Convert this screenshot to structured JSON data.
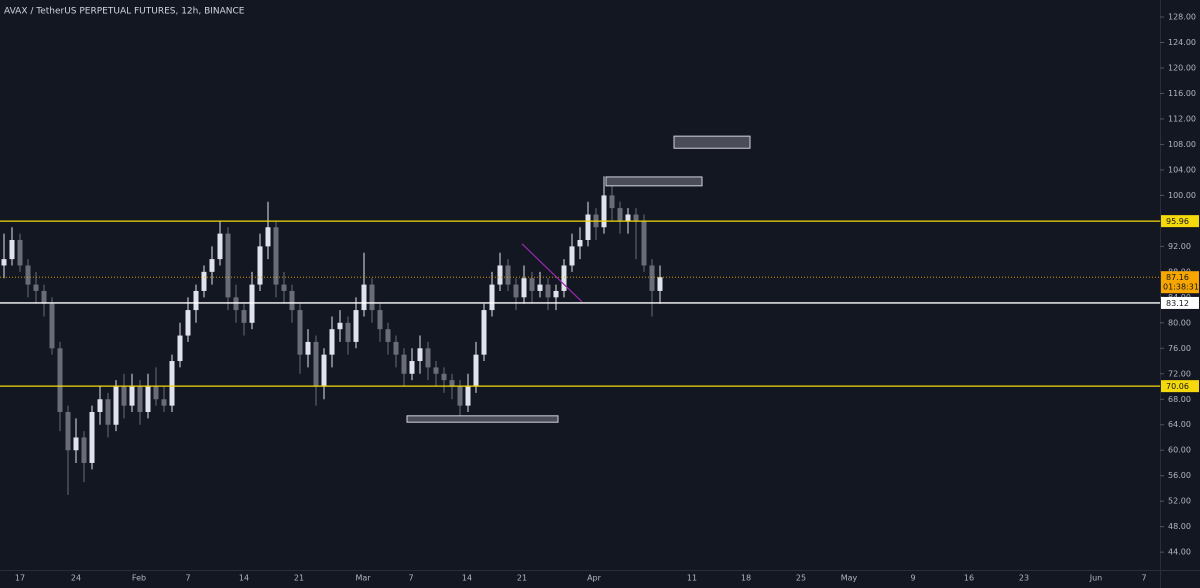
{
  "chart_data": {
    "type": "candlestick",
    "title": "AVAX / TetherUS PERPETUAL FUTURES, 12h, BINANCE",
    "up_color": "#e0e3eb",
    "down_color": "#6a6d78",
    "ylim": [
      41.2,
      130.67
    ],
    "yticks": [
      {
        "value": 44,
        "label": "44.00"
      },
      {
        "value": 48,
        "label": "48.00"
      },
      {
        "value": 52,
        "label": "52.00"
      },
      {
        "value": 56,
        "label": "56.00"
      },
      {
        "value": 60,
        "label": "60.00"
      },
      {
        "value": 64,
        "label": "64.00"
      },
      {
        "value": 68,
        "label": "68.00"
      },
      {
        "value": 72,
        "label": "72.00"
      },
      {
        "value": 76,
        "label": "76.00"
      },
      {
        "value": 80,
        "label": "80.00"
      },
      {
        "value": 84,
        "label": "84.00"
      },
      {
        "value": 88,
        "label": "88.00"
      },
      {
        "value": 92,
        "label": "92.00"
      },
      {
        "value": 96,
        "label": "96.00"
      },
      {
        "value": 100,
        "label": "100.00"
      },
      {
        "value": 104,
        "label": "104.00"
      },
      {
        "value": 108,
        "label": "108.00"
      },
      {
        "value": 112,
        "label": "112.00"
      },
      {
        "value": 116,
        "label": "116.00"
      },
      {
        "value": 120,
        "label": "120.00"
      },
      {
        "value": 124,
        "label": "124.00"
      },
      {
        "value": 128,
        "label": "128.00"
      }
    ],
    "xticks": [
      "17",
      "24",
      "Feb",
      "7",
      "14",
      "21",
      "Mar",
      "7",
      "14",
      "21",
      "Apr",
      "11",
      "18",
      "25",
      "May",
      "9",
      "16",
      "23",
      "Jun",
      "7"
    ],
    "candles": [
      [
        89,
        94,
        87,
        90
      ],
      [
        90,
        95,
        89,
        93
      ],
      [
        93,
        94,
        88,
        89
      ],
      [
        89,
        90,
        84,
        86
      ],
      [
        86,
        88,
        83,
        85
      ],
      [
        85,
        86,
        81,
        83
      ],
      [
        83,
        84,
        75,
        76
      ],
      [
        76,
        77,
        63,
        66
      ],
      [
        66,
        67,
        53,
        60
      ],
      [
        60,
        65,
        58,
        62
      ],
      [
        62,
        63,
        55,
        58
      ],
      [
        58,
        67,
        57,
        66
      ],
      [
        66,
        70,
        64,
        68
      ],
      [
        68,
        69,
        62,
        64
      ],
      [
        64,
        71,
        63,
        70
      ],
      [
        70,
        72,
        65,
        67
      ],
      [
        67,
        72,
        66,
        70
      ],
      [
        70,
        71,
        64,
        66
      ],
      [
        66,
        72,
        65,
        70
      ],
      [
        70,
        73,
        67,
        68
      ],
      [
        68,
        70,
        66,
        67
      ],
      [
        67,
        75,
        66,
        74
      ],
      [
        74,
        80,
        73,
        78
      ],
      [
        78,
        84,
        77,
        82
      ],
      [
        82,
        86,
        80,
        85
      ],
      [
        85,
        89,
        84,
        88
      ],
      [
        88,
        92,
        86,
        90
      ],
      [
        90,
        96,
        89,
        94
      ],
      [
        94,
        95,
        82,
        84
      ],
      [
        84,
        86,
        80,
        82
      ],
      [
        82,
        83,
        78,
        80
      ],
      [
        80,
        88,
        79,
        86
      ],
      [
        86,
        94,
        85,
        92
      ],
      [
        92,
        99,
        90,
        95
      ],
      [
        95,
        96,
        84,
        86
      ],
      [
        86,
        88,
        83,
        85
      ],
      [
        85,
        86,
        80,
        82
      ],
      [
        82,
        83,
        72,
        75
      ],
      [
        75,
        79,
        73,
        77
      ],
      [
        77,
        78,
        67,
        70
      ],
      [
        70,
        76,
        68,
        75
      ],
      [
        75,
        81,
        73,
        79
      ],
      [
        79,
        82,
        77,
        80
      ],
      [
        80,
        81,
        75,
        77
      ],
      [
        77,
        84,
        76,
        82
      ],
      [
        82,
        91,
        81,
        86
      ],
      [
        86,
        87,
        80,
        82
      ],
      [
        82,
        83,
        77,
        79
      ],
      [
        79,
        80,
        75,
        77
      ],
      [
        77,
        78,
        73,
        75
      ],
      [
        75,
        76,
        70,
        72
      ],
      [
        72,
        76,
        71,
        74
      ],
      [
        74,
        78,
        72,
        76
      ],
      [
        76,
        77,
        71,
        73
      ],
      [
        73,
        74,
        70,
        72
      ],
      [
        72,
        73,
        69,
        71
      ],
      [
        71,
        72,
        68,
        70
      ],
      [
        70,
        71,
        65,
        67
      ],
      [
        67,
        72,
        66,
        70
      ],
      [
        70,
        77,
        69,
        75
      ],
      [
        75,
        83,
        74,
        82
      ],
      [
        82,
        88,
        81,
        86
      ],
      [
        86,
        91,
        85,
        89
      ],
      [
        89,
        90,
        85,
        86
      ],
      [
        86,
        87,
        82,
        84
      ],
      [
        84,
        89,
        83,
        87
      ],
      [
        87,
        88,
        83,
        85
      ],
      [
        85,
        88,
        84,
        86
      ],
      [
        86,
        87,
        82,
        84
      ],
      [
        84,
        86,
        82,
        85
      ],
      [
        85,
        90,
        84,
        89
      ],
      [
        89,
        94,
        88,
        92
      ],
      [
        92,
        95,
        90,
        93
      ],
      [
        93,
        99,
        92,
        97
      ],
      [
        97,
        98,
        93,
        95
      ],
      [
        95,
        103,
        94,
        100
      ],
      [
        100,
        102,
        96,
        98
      ],
      [
        98,
        99,
        94,
        96
      ],
      [
        96,
        98,
        94,
        97
      ],
      [
        97,
        98,
        90,
        96
      ],
      [
        96,
        97,
        88,
        89
      ],
      [
        89,
        90,
        81,
        85
      ],
      [
        85,
        89,
        83,
        87.16
      ]
    ],
    "levels": [
      {
        "value": 95.96,
        "label": "95.96",
        "color": "#f5d90a"
      },
      {
        "value": 70.06,
        "label": "70.06",
        "color": "#f5d90a"
      },
      {
        "value": 83.12,
        "label": "83.12",
        "color": "#ffffff"
      }
    ],
    "last_price": {
      "value": 87.16,
      "label": "87.16",
      "countdown": "01:38:31",
      "color": "#f7a600"
    },
    "zones": [
      [
        107.4,
        109.3
      ],
      [
        101.5,
        102.9
      ],
      [
        64.4,
        65.4
      ]
    ],
    "trendline": {
      "from": 92.4,
      "to": 83.3,
      "color": "#9c27b0"
    }
  }
}
